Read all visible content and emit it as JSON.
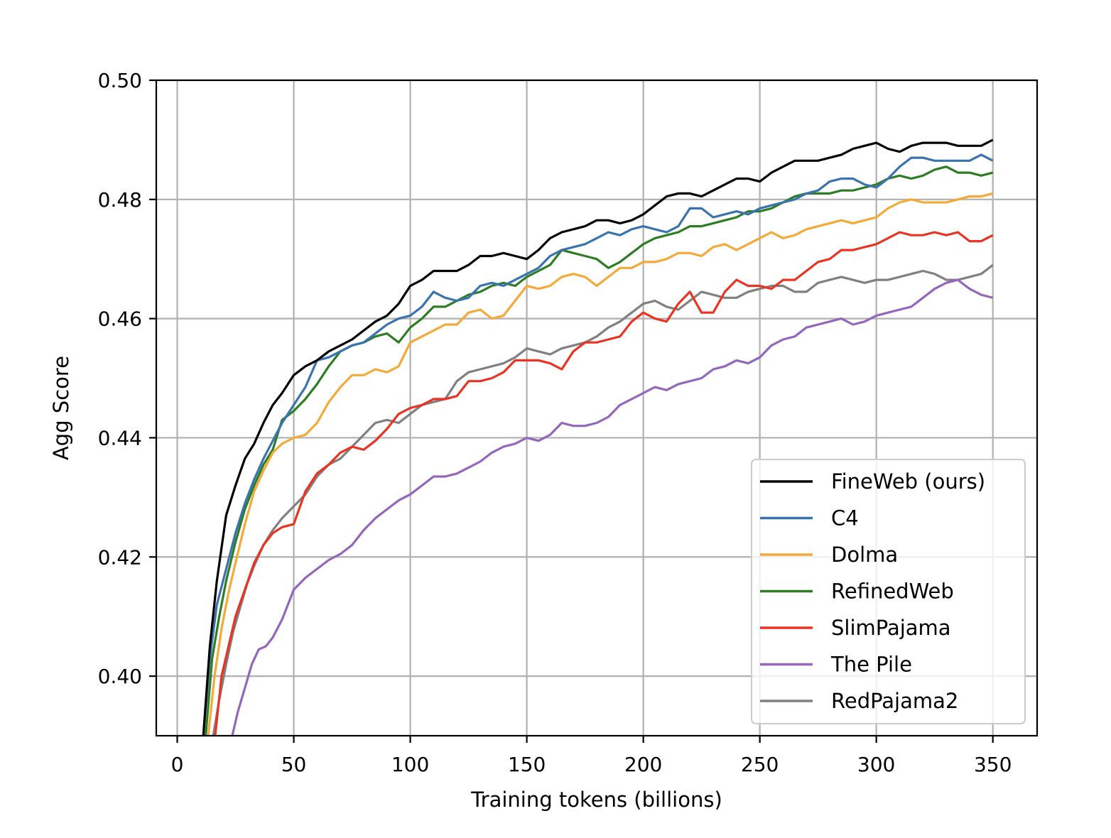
{
  "chart_data": {
    "type": "line",
    "title": "",
    "xlabel": "Training tokens (billions)",
    "ylabel": "Agg Score",
    "xlim": [
      -9,
      369
    ],
    "ylim": [
      0.39,
      0.5
    ],
    "xticks": [
      0,
      50,
      100,
      150,
      200,
      250,
      300,
      350
    ],
    "yticks": [
      0.4,
      0.42,
      0.44,
      0.46,
      0.48,
      0.5
    ],
    "xtick_labels": [
      "0",
      "50",
      "100",
      "150",
      "200",
      "250",
      "300",
      "350"
    ],
    "ytick_labels": [
      "0.40",
      "0.42",
      "0.44",
      "0.46",
      "0.48",
      "0.50"
    ],
    "grid": true,
    "legend_position": "lower right",
    "series": [
      {
        "name": "FineWeb (ours)",
        "color": "#000000",
        "x": [
          11,
          14,
          17,
          21,
          25,
          29,
          33,
          37,
          41,
          45,
          50,
          55,
          60,
          65,
          70,
          75,
          80,
          85,
          90,
          95,
          100,
          105,
          110,
          115,
          120,
          125,
          130,
          135,
          140,
          145,
          150,
          155,
          160,
          165,
          170,
          175,
          180,
          185,
          190,
          195,
          200,
          205,
          210,
          215,
          220,
          225,
          230,
          235,
          240,
          245,
          250,
          255,
          260,
          265,
          270,
          275,
          280,
          285,
          290,
          295,
          300,
          305,
          310,
          315,
          320,
          325,
          330,
          335,
          340,
          345,
          350
        ],
        "y": [
          0.389,
          0.405,
          0.416,
          0.427,
          0.432,
          0.4365,
          0.439,
          0.4425,
          0.4455,
          0.4475,
          0.4505,
          0.452,
          0.453,
          0.4545,
          0.4555,
          0.4565,
          0.458,
          0.4595,
          0.4605,
          0.4625,
          0.4655,
          0.4665,
          0.468,
          0.468,
          0.468,
          0.469,
          0.4705,
          0.4705,
          0.471,
          0.4705,
          0.47,
          0.4715,
          0.4735,
          0.4745,
          0.475,
          0.4755,
          0.4765,
          0.4765,
          0.476,
          0.4765,
          0.4775,
          0.479,
          0.4805,
          0.481,
          0.481,
          0.4805,
          0.4815,
          0.4825,
          0.4835,
          0.4835,
          0.483,
          0.4845,
          0.4855,
          0.4865,
          0.4865,
          0.4865,
          0.487,
          0.4875,
          0.4885,
          0.489,
          0.4895,
          0.4885,
          0.488,
          0.489,
          0.4895,
          0.4895,
          0.4895,
          0.489,
          0.489,
          0.489,
          0.49
        ]
      },
      {
        "name": "C4",
        "color": "#3a73b0",
        "x": [
          11,
          14,
          17,
          21,
          25,
          29,
          33,
          37,
          41,
          45,
          50,
          55,
          60,
          65,
          70,
          75,
          80,
          85,
          90,
          95,
          100,
          105,
          110,
          115,
          120,
          125,
          130,
          135,
          140,
          145,
          150,
          155,
          160,
          165,
          170,
          175,
          180,
          185,
          190,
          195,
          200,
          205,
          210,
          215,
          220,
          225,
          230,
          235,
          240,
          245,
          250,
          255,
          260,
          265,
          270,
          275,
          280,
          285,
          290,
          295,
          300,
          305,
          310,
          315,
          320,
          325,
          330,
          335,
          340,
          345,
          350
        ],
        "y": [
          0.389,
          0.403,
          0.412,
          0.418,
          0.424,
          0.429,
          0.433,
          0.4365,
          0.4395,
          0.4425,
          0.4455,
          0.4485,
          0.453,
          0.4535,
          0.4545,
          0.4555,
          0.456,
          0.4575,
          0.459,
          0.46,
          0.4605,
          0.462,
          0.4645,
          0.4635,
          0.463,
          0.4635,
          0.4655,
          0.466,
          0.4655,
          0.4665,
          0.4675,
          0.4685,
          0.4705,
          0.4715,
          0.472,
          0.4725,
          0.4735,
          0.4745,
          0.474,
          0.475,
          0.4755,
          0.475,
          0.4745,
          0.4755,
          0.4785,
          0.4785,
          0.477,
          0.4775,
          0.478,
          0.4775,
          0.4785,
          0.479,
          0.4795,
          0.48,
          0.481,
          0.4815,
          0.483,
          0.4835,
          0.4835,
          0.4825,
          0.482,
          0.4835,
          0.4855,
          0.487,
          0.487,
          0.4865,
          0.4865,
          0.4865,
          0.4865,
          0.4875,
          0.4865
        ]
      },
      {
        "name": "Dolma",
        "color": "#f4a938",
        "x": [
          13,
          16,
          19,
          22,
          25,
          29,
          33,
          37,
          41,
          45,
          50,
          55,
          60,
          65,
          70,
          75,
          80,
          85,
          90,
          95,
          100,
          105,
          110,
          115,
          120,
          125,
          130,
          135,
          140,
          145,
          150,
          155,
          160,
          165,
          170,
          175,
          180,
          185,
          190,
          195,
          200,
          205,
          210,
          215,
          220,
          225,
          230,
          235,
          240,
          245,
          250,
          255,
          260,
          265,
          270,
          275,
          280,
          285,
          290,
          295,
          300,
          305,
          310,
          315,
          320,
          325,
          330,
          335,
          340,
          345,
          350
        ],
        "y": [
          0.389,
          0.4,
          0.408,
          0.414,
          0.419,
          0.4255,
          0.431,
          0.4345,
          0.4375,
          0.439,
          0.44,
          0.4405,
          0.4425,
          0.446,
          0.4485,
          0.4505,
          0.4505,
          0.4515,
          0.451,
          0.452,
          0.456,
          0.457,
          0.458,
          0.459,
          0.459,
          0.461,
          0.4615,
          0.46,
          0.4605,
          0.463,
          0.4655,
          0.465,
          0.4655,
          0.467,
          0.4675,
          0.467,
          0.4655,
          0.467,
          0.4685,
          0.4685,
          0.4695,
          0.4695,
          0.47,
          0.471,
          0.471,
          0.4705,
          0.472,
          0.4725,
          0.4715,
          0.4725,
          0.4735,
          0.4745,
          0.4735,
          0.474,
          0.475,
          0.4755,
          0.476,
          0.4765,
          0.476,
          0.4765,
          0.477,
          0.4785,
          0.4795,
          0.48,
          0.4795,
          0.4795,
          0.4795,
          0.48,
          0.4805,
          0.4805,
          0.481
        ]
      },
      {
        "name": "RefinedWeb",
        "color": "#2e7d24",
        "x": [
          12,
          15,
          18,
          21,
          25,
          29,
          33,
          37,
          41,
          45,
          50,
          55,
          60,
          65,
          70,
          75,
          80,
          85,
          90,
          95,
          100,
          105,
          110,
          115,
          120,
          125,
          130,
          135,
          140,
          145,
          150,
          155,
          160,
          165,
          170,
          175,
          180,
          185,
          190,
          195,
          200,
          205,
          210,
          215,
          220,
          225,
          230,
          235,
          240,
          245,
          250,
          255,
          260,
          265,
          270,
          275,
          280,
          285,
          290,
          295,
          300,
          305,
          310,
          315,
          320,
          325,
          330,
          335,
          340,
          345,
          350
        ],
        "y": [
          0.389,
          0.403,
          0.41,
          0.416,
          0.4225,
          0.428,
          0.432,
          0.4355,
          0.438,
          0.443,
          0.4445,
          0.4465,
          0.449,
          0.452,
          0.4545,
          0.4555,
          0.456,
          0.457,
          0.4575,
          0.456,
          0.4585,
          0.46,
          0.462,
          0.462,
          0.463,
          0.464,
          0.4645,
          0.4655,
          0.466,
          0.4655,
          0.467,
          0.468,
          0.469,
          0.4715,
          0.471,
          0.4705,
          0.47,
          0.4685,
          0.4695,
          0.471,
          0.4725,
          0.4735,
          0.474,
          0.4745,
          0.4755,
          0.4755,
          0.476,
          0.4765,
          0.477,
          0.478,
          0.478,
          0.4785,
          0.4795,
          0.4805,
          0.481,
          0.481,
          0.481,
          0.4815,
          0.4815,
          0.482,
          0.4825,
          0.4835,
          0.484,
          0.4835,
          0.484,
          0.485,
          0.4855,
          0.4845,
          0.4845,
          0.484,
          0.4845
        ]
      },
      {
        "name": "SlimPajama",
        "color": "#ea3323",
        "x": [
          16,
          19,
          22,
          25,
          29,
          33,
          37,
          41,
          45,
          50,
          55,
          60,
          65,
          70,
          75,
          80,
          85,
          90,
          95,
          100,
          105,
          110,
          115,
          120,
          125,
          130,
          135,
          140,
          145,
          150,
          155,
          160,
          165,
          170,
          175,
          180,
          185,
          190,
          195,
          200,
          205,
          210,
          215,
          220,
          225,
          230,
          235,
          240,
          245,
          250,
          255,
          260,
          265,
          270,
          275,
          280,
          285,
          290,
          295,
          300,
          305,
          310,
          315,
          320,
          325,
          330,
          335,
          340,
          345,
          350
        ],
        "y": [
          0.389,
          0.4,
          0.405,
          0.41,
          0.4145,
          0.419,
          0.422,
          0.424,
          0.425,
          0.4255,
          0.431,
          0.434,
          0.4355,
          0.4375,
          0.4385,
          0.438,
          0.4395,
          0.4415,
          0.444,
          0.445,
          0.4455,
          0.4465,
          0.4465,
          0.447,
          0.4495,
          0.4495,
          0.45,
          0.451,
          0.453,
          0.453,
          0.453,
          0.4525,
          0.4515,
          0.4545,
          0.456,
          0.456,
          0.4565,
          0.457,
          0.4595,
          0.461,
          0.46,
          0.4595,
          0.4625,
          0.4645,
          0.461,
          0.461,
          0.4645,
          0.4665,
          0.4655,
          0.4655,
          0.465,
          0.4665,
          0.4665,
          0.468,
          0.4695,
          0.47,
          0.4715,
          0.4715,
          0.472,
          0.4725,
          0.4735,
          0.4745,
          0.474,
          0.474,
          0.4745,
          0.474,
          0.4745,
          0.473,
          0.473,
          0.474
        ]
      },
      {
        "name": "The Pile",
        "color": "#9467bd",
        "x": [
          23,
          26,
          29,
          32,
          35,
          38,
          41,
          45,
          50,
          55,
          60,
          65,
          70,
          75,
          80,
          85,
          90,
          95,
          100,
          105,
          110,
          115,
          120,
          125,
          130,
          135,
          140,
          145,
          150,
          155,
          160,
          165,
          170,
          175,
          180,
          185,
          190,
          195,
          200,
          205,
          210,
          215,
          220,
          225,
          230,
          235,
          240,
          245,
          250,
          255,
          260,
          265,
          270,
          275,
          280,
          285,
          290,
          295,
          300,
          305,
          310,
          315,
          320,
          325,
          330,
          335,
          340,
          345,
          350
        ],
        "y": [
          0.389,
          0.394,
          0.398,
          0.402,
          0.4045,
          0.405,
          0.4065,
          0.4095,
          0.4145,
          0.4165,
          0.418,
          0.4195,
          0.4205,
          0.422,
          0.4245,
          0.4265,
          0.428,
          0.4295,
          0.4305,
          0.432,
          0.4335,
          0.4335,
          0.434,
          0.435,
          0.436,
          0.4375,
          0.4385,
          0.439,
          0.44,
          0.4395,
          0.4405,
          0.4425,
          0.442,
          0.442,
          0.4425,
          0.4435,
          0.4455,
          0.4465,
          0.4475,
          0.4485,
          0.448,
          0.449,
          0.4495,
          0.45,
          0.4515,
          0.452,
          0.453,
          0.4525,
          0.4535,
          0.4555,
          0.4565,
          0.457,
          0.4585,
          0.459,
          0.4595,
          0.46,
          0.459,
          0.4595,
          0.4605,
          0.461,
          0.4615,
          0.462,
          0.4635,
          0.465,
          0.466,
          0.4665,
          0.465,
          0.464,
          0.4635
        ]
      },
      {
        "name": "RedPajama2",
        "color": "#808080",
        "x": [
          15,
          18,
          21,
          24,
          27,
          30,
          33,
          37,
          41,
          45,
          50,
          55,
          60,
          65,
          70,
          75,
          80,
          85,
          90,
          95,
          100,
          105,
          110,
          115,
          120,
          125,
          130,
          135,
          140,
          145,
          150,
          155,
          160,
          165,
          170,
          175,
          180,
          185,
          190,
          195,
          200,
          205,
          210,
          215,
          220,
          225,
          230,
          235,
          240,
          245,
          250,
          255,
          260,
          265,
          270,
          275,
          280,
          285,
          290,
          295,
          300,
          305,
          310,
          315,
          320,
          325,
          330,
          335,
          340,
          345,
          350
        ],
        "y": [
          0.389,
          0.396,
          0.402,
          0.4075,
          0.4115,
          0.4155,
          0.4185,
          0.422,
          0.4245,
          0.4265,
          0.4285,
          0.4305,
          0.4335,
          0.4355,
          0.4365,
          0.4385,
          0.4405,
          0.4425,
          0.443,
          0.4425,
          0.444,
          0.4455,
          0.446,
          0.4465,
          0.4495,
          0.451,
          0.4515,
          0.452,
          0.4525,
          0.4535,
          0.455,
          0.4545,
          0.454,
          0.455,
          0.4555,
          0.456,
          0.457,
          0.4585,
          0.4595,
          0.461,
          0.4625,
          0.463,
          0.462,
          0.4615,
          0.463,
          0.4645,
          0.464,
          0.4635,
          0.4635,
          0.4645,
          0.465,
          0.4655,
          0.4655,
          0.4645,
          0.4645,
          0.466,
          0.4665,
          0.467,
          0.4665,
          0.466,
          0.4665,
          0.4665,
          0.467,
          0.4675,
          0.468,
          0.4675,
          0.4665,
          0.4665,
          0.467,
          0.4675,
          0.469
        ]
      }
    ]
  }
}
